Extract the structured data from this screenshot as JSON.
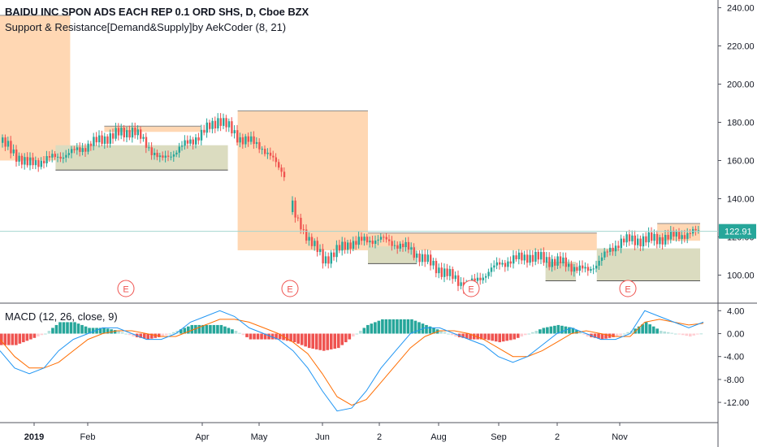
{
  "header": {
    "title": "BAIDU INC SPON ADS EACH REP 0.1 ORD SHS, D, Cboe BZX",
    "indicator": "Support & Resistance[Demand&Supply]by AekCoder (8, 21)",
    "macd_label": "MACD (12, 26, close, 9)"
  },
  "last_price": "122.91",
  "earnings_marker": "E",
  "colors": {
    "up": "#26a69a",
    "down": "#ef5350",
    "supply": "#ffd7b3",
    "demand": "#dbdcc0",
    "macd_line": "#2196f3",
    "signal_line": "#ff6d00",
    "price_label": "#26a69a"
  },
  "chart_data": [
    {
      "type": "candlestick",
      "title": "BAIDU INC SPON ADS EACH REP 0.1 ORD SHS, D, Cboe BZX",
      "ylim": [
        88,
        244
      ],
      "y_ticks": [
        "240.00",
        "220.00",
        "200.00",
        "180.00",
        "160.00",
        "140.00",
        "120.00",
        "100.00"
      ],
      "x_ticks": [
        "2019",
        "Feb",
        "Apr",
        "May",
        "Jun",
        "2",
        "Aug",
        "Sep",
        "2",
        "Nov"
      ],
      "earnings_dates": [
        "Feb",
        "May",
        "Aug",
        "Nov"
      ],
      "close_path": [
        {
          "t": "Jan 1",
          "close": 170
        },
        {
          "t": "Jan 10",
          "close": 158
        },
        {
          "t": "Jan 25",
          "close": 164
        },
        {
          "t": "Feb 10",
          "close": 172
        },
        {
          "t": "Feb 25",
          "close": 176
        },
        {
          "t": "Mar 10",
          "close": 160
        },
        {
          "t": "Mar 25",
          "close": 170
        },
        {
          "t": "Apr 1",
          "close": 174
        },
        {
          "t": "Apr 10",
          "close": 182
        },
        {
          "t": "Apr 20",
          "close": 172
        },
        {
          "t": "May 1",
          "close": 168
        },
        {
          "t": "May 15",
          "close": 150
        },
        {
          "t": "May 17",
          "close": 131
        },
        {
          "t": "Jun 1",
          "close": 108
        },
        {
          "t": "Jun 15",
          "close": 117
        },
        {
          "t": "Jul 1",
          "close": 119
        },
        {
          "t": "Jul 15",
          "close": 114
        },
        {
          "t": "Aug 1",
          "close": 103
        },
        {
          "t": "Aug 15",
          "close": 94
        },
        {
          "t": "Sep 1",
          "close": 106
        },
        {
          "t": "Sep 15",
          "close": 110
        },
        {
          "t": "Oct 1",
          "close": 107
        },
        {
          "t": "Oct 15",
          "close": 102
        },
        {
          "t": "Nov 1",
          "close": 118
        },
        {
          "t": "Nov 15",
          "close": 119
        },
        {
          "t": "Dec 1",
          "close": 122.91
        }
      ],
      "supply_zones": [
        {
          "from": "Jan 1",
          "to": "Jan 25",
          "low": 160,
          "high": 236
        },
        {
          "from": "Feb 10",
          "to": "Apr 1",
          "low": 175,
          "high": 178
        },
        {
          "from": "Apr 20",
          "to": "Jun 25",
          "low": 113,
          "high": 186
        },
        {
          "from": "Jun 25",
          "to": "Oct 20",
          "low": 113,
          "high": 122
        },
        {
          "from": "Nov 15",
          "to": "Dec 1",
          "low": 118,
          "high": 127
        }
      ],
      "demand_zones": [
        {
          "from": "Jan 20",
          "to": "Apr 15",
          "low": 155,
          "high": 168
        },
        {
          "from": "Jun 25",
          "to": "Jul 20",
          "low": 106,
          "high": 115
        },
        {
          "from": "Sep 25",
          "to": "Oct 10",
          "low": 97,
          "high": 107
        },
        {
          "from": "Oct 20",
          "to": "Dec 1",
          "low": 97,
          "high": 114
        }
      ]
    },
    {
      "type": "macd",
      "title": "MACD (12, 26, close, 9)",
      "ylim": [
        -16,
        6
      ],
      "y_ticks": [
        "4.00",
        "0.00",
        "-4.00",
        "-8.00",
        "-12.00"
      ],
      "series": [
        {
          "points": [
            [
              0,
              -3
            ],
            [
              1,
              -6
            ],
            [
              2,
              -7
            ],
            [
              3,
              -6
            ],
            [
              4,
              -3
            ],
            [
              5,
              -1
            ],
            [
              6,
              0
            ],
            [
              7,
              1
            ],
            [
              8,
              1
            ],
            [
              9,
              0
            ],
            [
              10,
              -1
            ],
            [
              11,
              -1
            ],
            [
              12,
              0
            ],
            [
              13,
              2
            ],
            [
              14,
              3
            ],
            [
              15,
              4
            ],
            [
              16,
              3
            ],
            [
              17,
              1
            ],
            [
              18,
              0
            ],
            [
              19,
              -1
            ],
            [
              20,
              -3
            ],
            [
              21,
              -6
            ],
            [
              22,
              -10
            ],
            [
              23,
              -13.5
            ],
            [
              24,
              -13
            ],
            [
              25,
              -10
            ],
            [
              26,
              -6
            ],
            [
              27,
              -3
            ],
            [
              28,
              0
            ],
            [
              29,
              1
            ],
            [
              30,
              1
            ],
            [
              31,
              0
            ],
            [
              32,
              -1
            ],
            [
              33,
              -2
            ],
            [
              34,
              -4
            ],
            [
              35,
              -5
            ],
            [
              36,
              -4
            ],
            [
              37,
              -2
            ],
            [
              38,
              0
            ],
            [
              39,
              1
            ],
            [
              40,
              0
            ],
            [
              41,
              -1
            ],
            [
              42,
              -1
            ],
            [
              43,
              0
            ],
            [
              44,
              4
            ],
            [
              45,
              3
            ],
            [
              46,
              2
            ],
            [
              47,
              1
            ],
            [
              48,
              2
            ]
          ]
        },
        {
          "points": [
            [
              0,
              -1
            ],
            [
              1,
              -4
            ],
            [
              2,
              -6
            ],
            [
              3,
              -6
            ],
            [
              4,
              -5
            ],
            [
              5,
              -3
            ],
            [
              6,
              -1
            ],
            [
              7,
              0
            ],
            [
              8,
              0.5
            ],
            [
              9,
              0.5
            ],
            [
              10,
              0
            ],
            [
              11,
              -0.5
            ],
            [
              12,
              -0.5
            ],
            [
              13,
              0.5
            ],
            [
              14,
              1.5
            ],
            [
              15,
              2.5
            ],
            [
              16,
              2.5
            ],
            [
              17,
              2
            ],
            [
              18,
              1
            ],
            [
              19,
              0
            ],
            [
              20,
              -1.5
            ],
            [
              21,
              -3.5
            ],
            [
              22,
              -7
            ],
            [
              23,
              -11
            ],
            [
              24,
              -12.5
            ],
            [
              25,
              -11.5
            ],
            [
              26,
              -8.5
            ],
            [
              27,
              -5.5
            ],
            [
              28,
              -2.5
            ],
            [
              29,
              -0.5
            ],
            [
              30,
              0.5
            ],
            [
              31,
              0.5
            ],
            [
              32,
              0
            ],
            [
              33,
              -1
            ],
            [
              34,
              -2.5
            ],
            [
              35,
              -4
            ],
            [
              36,
              -4
            ],
            [
              37,
              -3
            ],
            [
              38,
              -1.5
            ],
            [
              39,
              0
            ],
            [
              40,
              0.5
            ],
            [
              41,
              0
            ],
            [
              42,
              -0.5
            ],
            [
              43,
              -0.5
            ],
            [
              44,
              2
            ],
            [
              45,
              2.5
            ],
            [
              46,
              2
            ],
            [
              47,
              1.5
            ],
            [
              48,
              1.8
            ]
          ]
        }
      ]
    }
  ]
}
